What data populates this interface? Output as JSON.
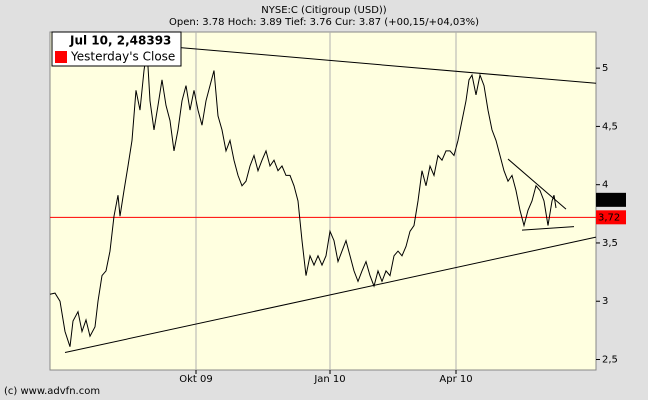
{
  "chart_data": {
    "type": "line",
    "title": "NYSE:C (Citigroup (USD))",
    "subtitle": "Open: 3.78 Hoch: 3.89 Tief: 3.76 Cur: 3.87 (+00,15/+04,03%)",
    "legend_title": "Jul 10, 2,48393",
    "copyright": "(c) www.advfn.com",
    "x": [
      0,
      2.5,
      5,
      7.5,
      10,
      11.5,
      14,
      16,
      18,
      20,
      22.5,
      24,
      26,
      28,
      30,
      32,
      34,
      35,
      37,
      39,
      41,
      43,
      45,
      47,
      48.5,
      50,
      52,
      54,
      56,
      58,
      60,
      62,
      64,
      66,
      68,
      70,
      72,
      74,
      76,
      78,
      80,
      82,
      84,
      86,
      88,
      90,
      92,
      94,
      96,
      98,
      100,
      102,
      104,
      106,
      108,
      110,
      112,
      114,
      116,
      118,
      120,
      122,
      124,
      126,
      128,
      130,
      132,
      134,
      136,
      138,
      140,
      142,
      144,
      146,
      148,
      150,
      152,
      154,
      156,
      158,
      160,
      162,
      164,
      166,
      168,
      170,
      172,
      174,
      176,
      178,
      180,
      182,
      184,
      186,
      188,
      190,
      192,
      194,
      196,
      198,
      200,
      202,
      204,
      206,
      208,
      209.5,
      211,
      213,
      215,
      217,
      219,
      221,
      223,
      225,
      227,
      229,
      231,
      233,
      235,
      237,
      239,
      241,
      243,
      245,
      247,
      249,
      251,
      252,
      253
    ],
    "series": [
      {
        "color": "#000000",
        "values": [
          3.06,
          3.07,
          3.0,
          2.74,
          2.61,
          2.83,
          2.91,
          2.74,
          2.84,
          2.7,
          2.78,
          3.0,
          3.22,
          3.26,
          3.43,
          3.73,
          3.91,
          3.73,
          3.95,
          4.16,
          4.38,
          4.81,
          4.64,
          4.98,
          5.16,
          4.72,
          4.47,
          4.68,
          4.9,
          4.68,
          4.55,
          4.29,
          4.47,
          4.72,
          4.85,
          4.64,
          4.81,
          4.64,
          4.51,
          4.72,
          4.85,
          4.98,
          4.59,
          4.47,
          4.29,
          4.38,
          4.21,
          4.08,
          3.99,
          4.03,
          4.16,
          4.25,
          4.12,
          4.21,
          4.29,
          4.16,
          4.21,
          4.12,
          4.16,
          4.08,
          4.08,
          3.99,
          3.86,
          3.52,
          3.22,
          3.39,
          3.31,
          3.39,
          3.31,
          3.39,
          3.6,
          3.52,
          3.34,
          3.43,
          3.52,
          3.39,
          3.26,
          3.17,
          3.26,
          3.34,
          3.22,
          3.13,
          3.26,
          3.17,
          3.26,
          3.22,
          3.39,
          3.43,
          3.39,
          3.47,
          3.6,
          3.65,
          3.86,
          4.12,
          3.99,
          4.16,
          4.08,
          4.25,
          4.21,
          4.29,
          4.29,
          4.25,
          4.38,
          4.55,
          4.72,
          4.9,
          4.94,
          4.77,
          4.94,
          4.85,
          4.64,
          4.47,
          4.38,
          4.25,
          4.12,
          4.03,
          4.08,
          3.95,
          3.78,
          3.65,
          3.78,
          3.86,
          3.99,
          3.95,
          3.86,
          3.65,
          3.86,
          3.91,
          3.8
        ]
      }
    ],
    "current": {
      "value": 3.87,
      "label": "3,87",
      "color": "#000000"
    },
    "reference_lines": [
      {
        "name": "Yesterday's Close",
        "value": 3.72,
        "value_label": "3,72",
        "color": "#ff0000"
      }
    ],
    "trend_lines": [
      {
        "x": [
          49,
          273
        ],
        "values": [
          5.2,
          4.87
        ]
      },
      {
        "x": [
          7.5,
          273
        ],
        "values": [
          2.56,
          3.55
        ]
      },
      {
        "x": [
          229,
          258
        ],
        "values": [
          4.22,
          3.79
        ]
      },
      {
        "x": [
          236,
          262
        ],
        "values": [
          3.61,
          3.64
        ]
      }
    ],
    "xlim": [
      0,
      273
    ],
    "xticks": [
      {
        "value": 73,
        "label": "Okt 09"
      },
      {
        "value": 140,
        "label": "Jan 10"
      },
      {
        "value": 203,
        "label": "Apr 10"
      }
    ],
    "ylim": [
      2.41,
      5.31
    ],
    "yticks": [
      {
        "value": 2.5,
        "label": "2,5"
      },
      3,
      {
        "value": 3.5,
        "label": "3,5"
      },
      4,
      {
        "value": 4.5,
        "label": "4,5"
      },
      5
    ],
    "grid": true,
    "plot_background": "#ffffe0"
  }
}
